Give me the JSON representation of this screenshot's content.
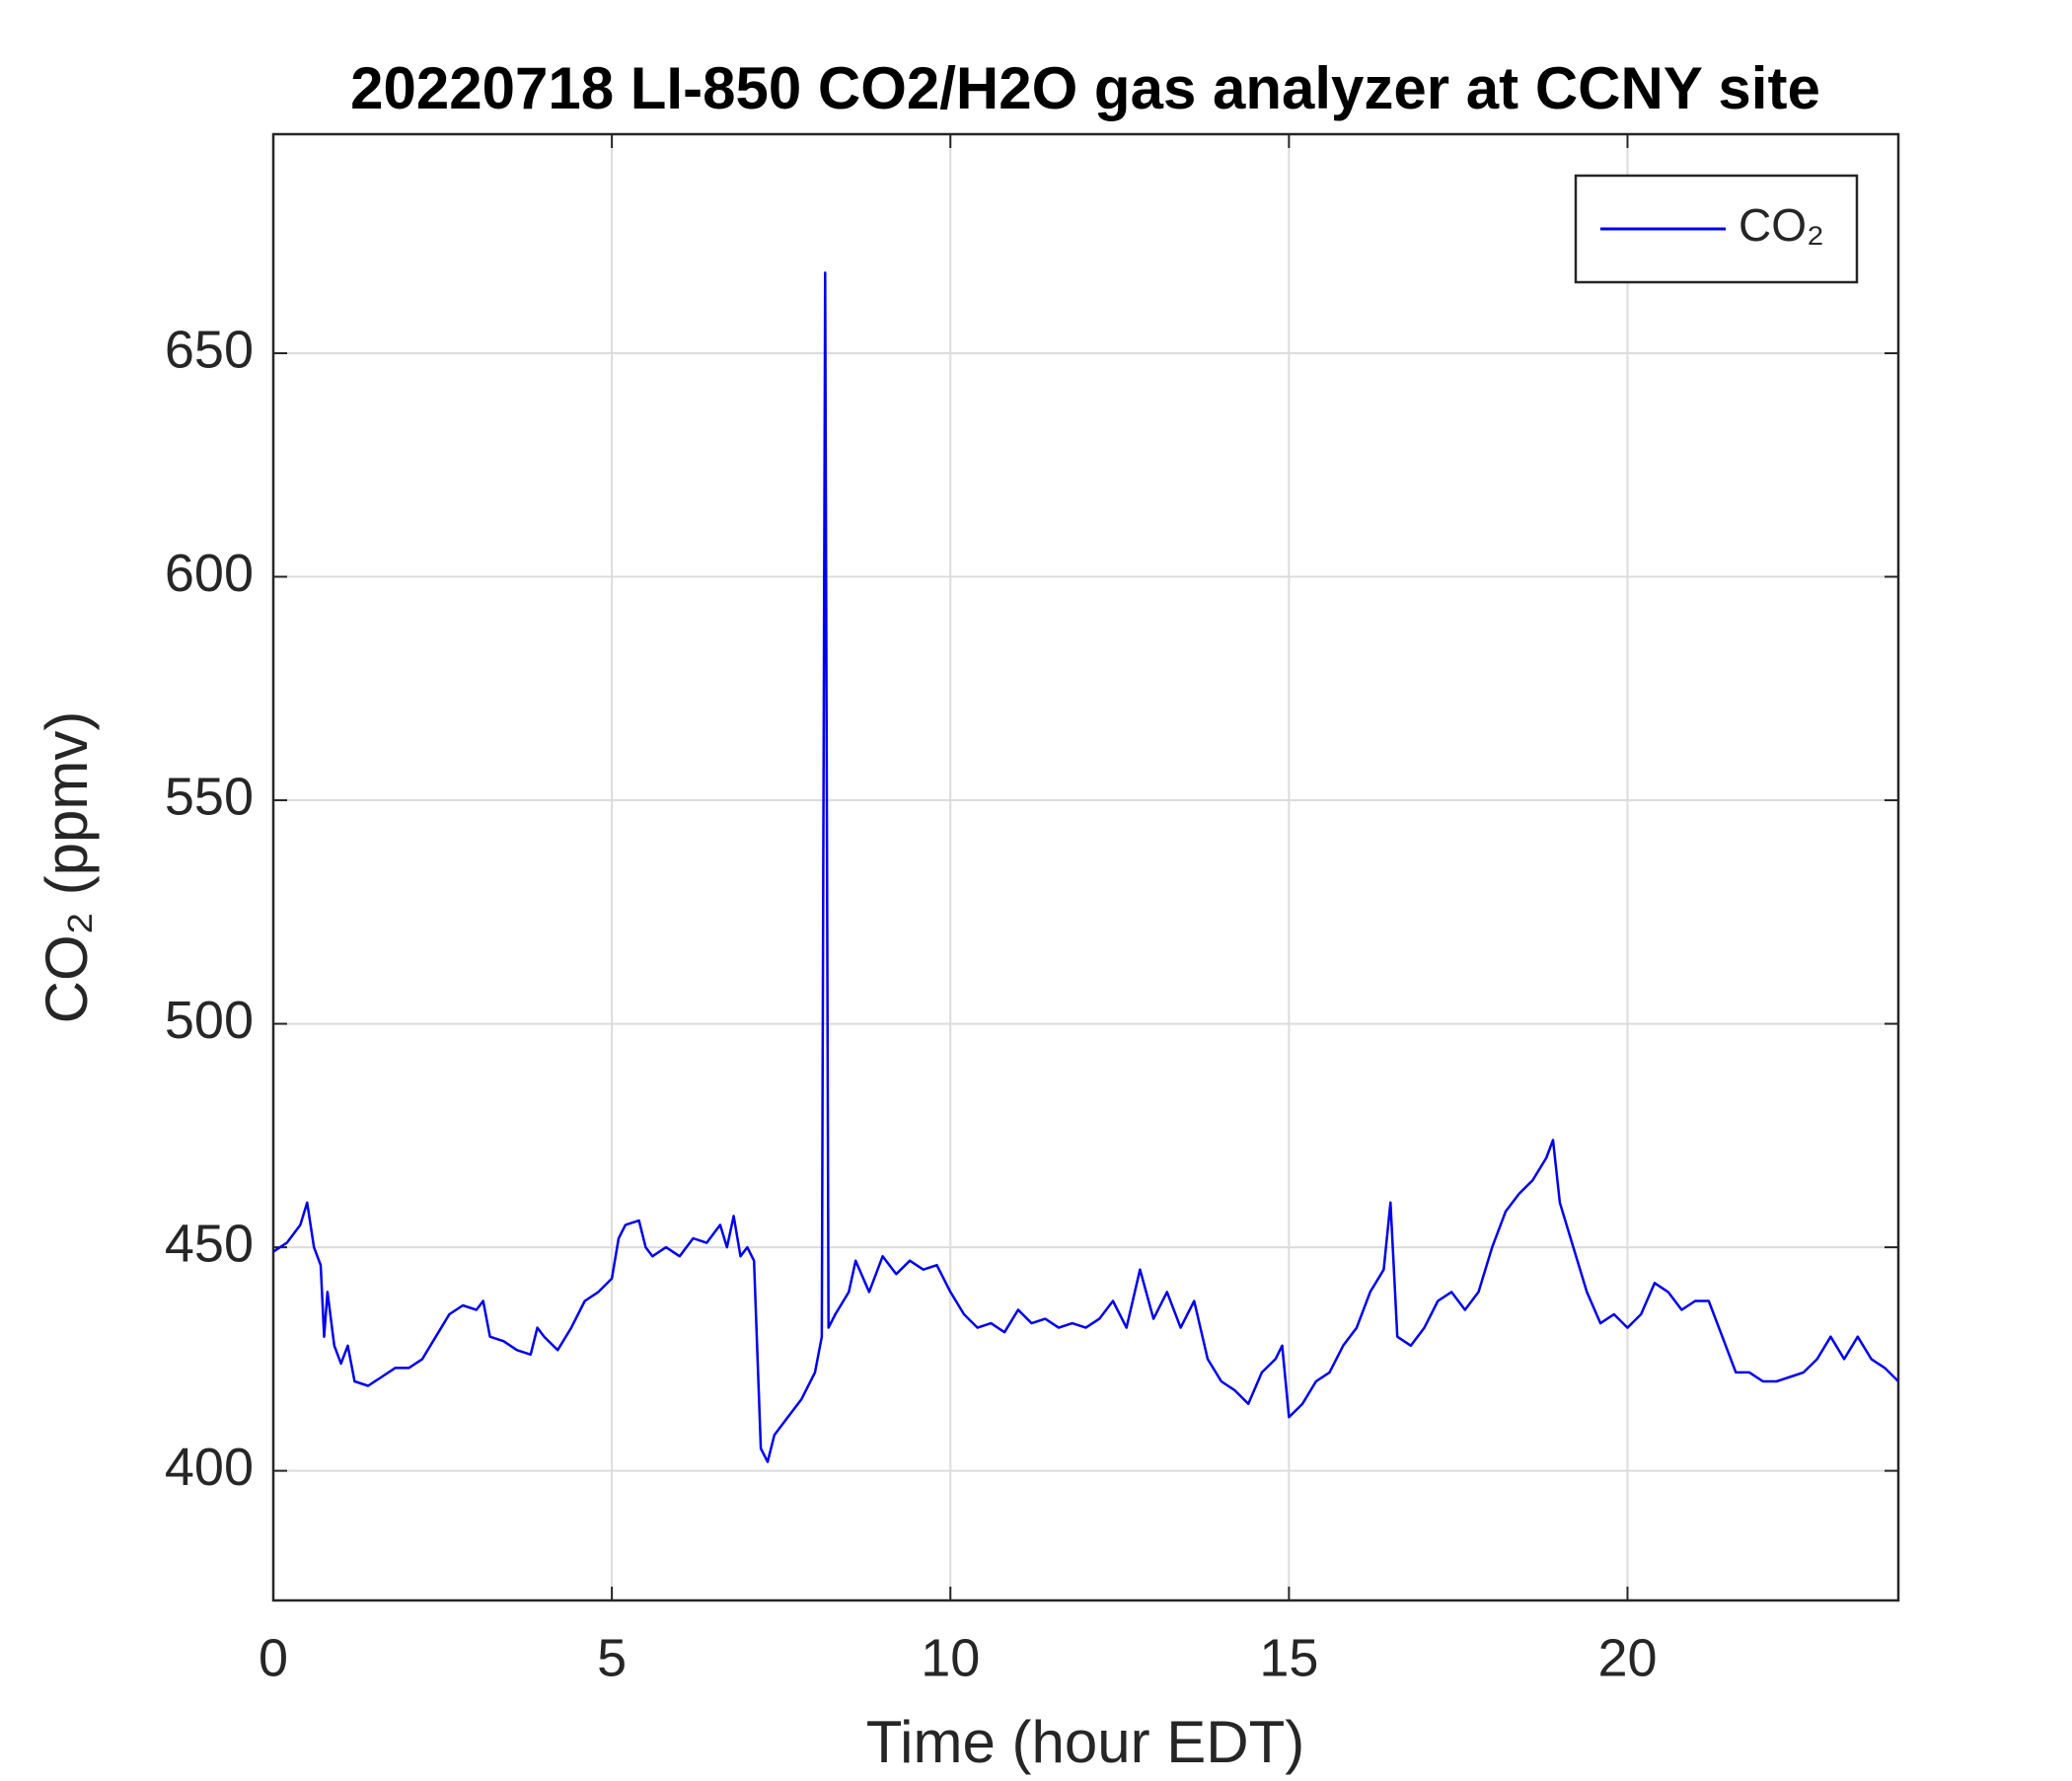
{
  "chart_data": {
    "type": "line",
    "title": "20220718 LI-850 CO2/H2O gas analyzer at CCNY site",
    "xlabel": "Time (hour EDT)",
    "ylabel": "CO₂ (ppmv)",
    "x": [
      0,
      0.2,
      0.4,
      0.5,
      0.6,
      0.7,
      0.75,
      0.8,
      0.9,
      1.0,
      1.1,
      1.2,
      1.4,
      1.6,
      1.8,
      2.0,
      2.2,
      2.4,
      2.6,
      2.8,
      3.0,
      3.1,
      3.2,
      3.4,
      3.6,
      3.8,
      3.9,
      4.0,
      4.2,
      4.4,
      4.6,
      4.8,
      5.0,
      5.1,
      5.2,
      5.4,
      5.5,
      5.6,
      5.8,
      6.0,
      6.2,
      6.4,
      6.6,
      6.7,
      6.8,
      6.9,
      7.0,
      7.1,
      7.2,
      7.3,
      7.4,
      7.6,
      7.8,
      8.0,
      8.1,
      8.15,
      8.2,
      8.3,
      8.5,
      8.6,
      8.8,
      9.0,
      9.2,
      9.4,
      9.6,
      9.8,
      10.0,
      10.2,
      10.4,
      10.6,
      10.8,
      11.0,
      11.2,
      11.4,
      11.6,
      11.8,
      12.0,
      12.2,
      12.4,
      12.6,
      12.8,
      13.0,
      13.2,
      13.4,
      13.6,
      13.8,
      14.0,
      14.2,
      14.4,
      14.6,
      14.8,
      14.9,
      15.0,
      15.2,
      15.4,
      15.6,
      15.8,
      16.0,
      16.2,
      16.4,
      16.5,
      16.6,
      16.8,
      17.0,
      17.2,
      17.4,
      17.6,
      17.8,
      18.0,
      18.2,
      18.4,
      18.6,
      18.8,
      18.9,
      19.0,
      19.2,
      19.4,
      19.6,
      19.8,
      20.0,
      20.2,
      20.4,
      20.6,
      20.8,
      21.0,
      21.2,
      21.4,
      21.6,
      21.8,
      22.0,
      22.2,
      22.4,
      22.6,
      22.8,
      23.0,
      23.2,
      23.4,
      23.6,
      23.8,
      24.0
    ],
    "series": [
      {
        "name": "CO₂",
        "color": "#0000ee",
        "values": [
          449,
          451,
          455,
          460,
          450,
          446,
          430,
          440,
          428,
          424,
          428,
          420,
          419,
          421,
          423,
          423,
          425,
          430,
          435,
          437,
          436,
          438,
          430,
          429,
          427,
          426,
          432,
          430,
          427,
          432,
          438,
          440,
          443,
          452,
          455,
          456,
          450,
          448,
          450,
          448,
          452,
          451,
          455,
          450,
          457,
          448,
          450,
          447,
          405,
          402,
          408,
          412,
          416,
          422,
          430,
          668,
          432,
          435,
          440,
          447,
          440,
          448,
          444,
          447,
          445,
          446,
          440,
          435,
          432,
          433,
          431,
          436,
          433,
          434,
          432,
          433,
          432,
          434,
          438,
          432,
          445,
          434,
          440,
          432,
          438,
          425,
          420,
          418,
          415,
          422,
          425,
          428,
          412,
          415,
          420,
          422,
          428,
          432,
          440,
          445,
          460,
          430,
          428,
          432,
          438,
          440,
          436,
          440,
          450,
          458,
          462,
          465,
          470,
          474,
          460,
          450,
          440,
          433,
          435,
          432,
          435,
          442,
          440,
          436,
          438,
          438,
          430,
          422,
          422,
          420,
          420,
          421,
          422,
          425,
          430,
          425,
          430,
          425,
          423,
          420
        ]
      }
    ],
    "xlim": [
      0,
      24
    ],
    "xticks": [
      0,
      5,
      10,
      15,
      20
    ],
    "ylim": [
      371,
      699
    ],
    "yticks": [
      400,
      450,
      500,
      550,
      600,
      650
    ],
    "grid": true,
    "legend": "upper right"
  }
}
